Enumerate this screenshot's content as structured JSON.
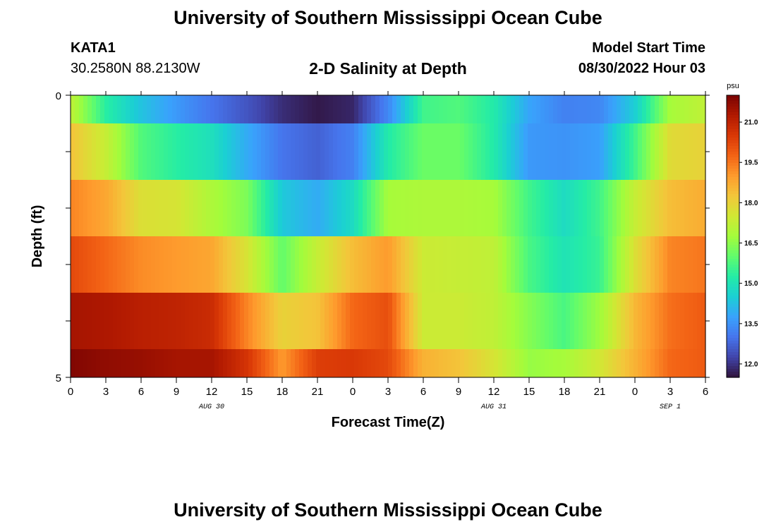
{
  "header": {
    "title": "University of Southern Mississippi Ocean Cube",
    "station": "KATA1",
    "coords": "30.2580N  88.2130W",
    "plot_title": "2-D Salinity at Depth",
    "start_label": "Model Start Time",
    "start_value": "08/30/2022 Hour 03"
  },
  "footer": {
    "title": "University of Southern Mississippi Ocean Cube"
  },
  "chart_data": {
    "type": "heatmap",
    "title": "2-D Salinity at Depth",
    "xlabel": "Forecast Time(Z)",
    "ylabel": "Depth (ft)",
    "x_tick_labels": [
      "0",
      "3",
      "6",
      "9",
      "12",
      "15",
      "18",
      "21",
      "0",
      "3",
      "6",
      "9",
      "12",
      "15",
      "18",
      "21",
      "0",
      "3",
      "6"
    ],
    "date_labels": [
      {
        "label": "AUG 30",
        "tick_index": 4
      },
      {
        "label": "AUG 31",
        "tick_index": 12
      },
      {
        "label": "SEP 1",
        "tick_index": 17
      }
    ],
    "y_tick_labels": [
      {
        "label": "0",
        "depth": 0
      },
      {
        "label": "5",
        "depth": 5
      }
    ],
    "ylim": [
      0,
      5
    ],
    "colorbar": {
      "unit": "psu",
      "min": 11.5,
      "max": 22.0,
      "labels": [
        "21.0",
        "19.5",
        "18.0",
        "16.5",
        "15.0",
        "13.5",
        "12.0"
      ],
      "colors": [
        "#30123b",
        "#4145ab",
        "#4675ed",
        "#39a2fc",
        "#1bcfd4",
        "#24eca6",
        "#61fc6c",
        "#a4fc3b",
        "#d1e834",
        "#f3c63a",
        "#fe9b2d",
        "#f36315",
        "#d93806",
        "#b11901",
        "#7a0402"
      ]
    },
    "x_anchor_hours": [
      0,
      3,
      6,
      9,
      12,
      15,
      18,
      21,
      24,
      27,
      30,
      33,
      36,
      39,
      42,
      45,
      48,
      51,
      54
    ],
    "rows": [
      {
        "depth_range": [
          0,
          0.5
        ],
        "salinity": [
          17.2,
          15.3,
          14.3,
          13.6,
          13.0,
          12.5,
          11.9,
          11.6,
          11.8,
          13.3,
          15.6,
          15.8,
          15.2,
          13.8,
          13.2,
          13.3,
          14.5,
          16.8,
          17.2
        ]
      },
      {
        "depth_range": [
          0.5,
          1.5
        ],
        "salinity": [
          18.3,
          17.3,
          15.8,
          15.3,
          14.9,
          13.9,
          13.0,
          12.7,
          13.2,
          15.2,
          16.1,
          16.1,
          15.2,
          13.6,
          13.5,
          13.7,
          15.6,
          17.8,
          18.0
        ]
      },
      {
        "depth_range": [
          1.5,
          2.5
        ],
        "salinity": [
          19.3,
          18.8,
          17.7,
          17.6,
          16.9,
          16.3,
          14.4,
          13.9,
          14.8,
          16.8,
          16.9,
          16.9,
          16.8,
          15.6,
          14.8,
          15.6,
          17.3,
          18.4,
          18.7
        ]
      },
      {
        "depth_range": [
          2.5,
          3.5
        ],
        "salinity": [
          20.2,
          19.7,
          19.2,
          19.0,
          18.8,
          17.6,
          16.0,
          17.3,
          18.4,
          19.0,
          17.4,
          17.3,
          17.2,
          15.7,
          15.0,
          15.5,
          17.7,
          19.3,
          19.5
        ]
      },
      {
        "depth_range": [
          3.5,
          4.5
        ],
        "salinity": [
          21.4,
          21.3,
          21.1,
          21.0,
          20.8,
          19.3,
          18.0,
          18.3,
          19.7,
          20.1,
          17.4,
          17.4,
          17.2,
          16.4,
          15.7,
          16.7,
          18.5,
          19.6,
          19.9
        ]
      },
      {
        "depth_range": [
          4.5,
          5.0
        ],
        "salinity": [
          21.9,
          21.7,
          21.6,
          21.4,
          21.4,
          20.6,
          19.0,
          20.4,
          20.5,
          20.2,
          18.6,
          18.3,
          17.6,
          16.6,
          16.8,
          17.5,
          18.6,
          19.7,
          19.9
        ]
      }
    ]
  }
}
